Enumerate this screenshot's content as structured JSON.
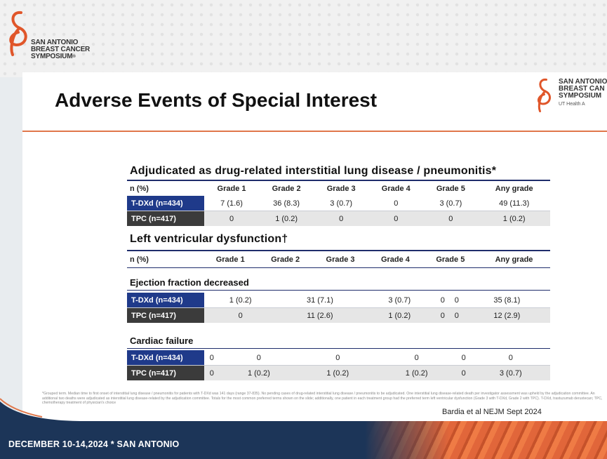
{
  "header": {
    "logo_lines": [
      "SAN ANTONIO",
      "BREAST CANCER",
      "SYMPOSIUM"
    ],
    "logo_mark": "®"
  },
  "slide": {
    "title": "Adverse Events of Special Interest",
    "corner_logo_lines": [
      "SAN ANTONIO",
      "BREAST CAN",
      "SYMPOSIUM"
    ],
    "corner_logo_extra": "UT Health   A",
    "columns": [
      "n (%)",
      "Grade 1",
      "Grade 2",
      "Grade 3",
      "Grade 4",
      "Grade 5",
      "Any grade"
    ],
    "ild": {
      "title": "Adjudicated as drug-related interstitial lung disease / pneumonitis*",
      "rows": [
        {
          "label": "T-DXd (n=434)",
          "values": [
            "7 (1.6)",
            "36 (8.3)",
            "3 (0.7)",
            "0",
            "3 (0.7)",
            "49 (11.3)"
          ]
        },
        {
          "label": "TPC (n=417)",
          "values": [
            "0",
            "1 (0.2)",
            "0",
            "0",
            "0",
            "1 (0.2)"
          ]
        }
      ]
    },
    "lvd": {
      "title": "Left ventricular dysfunction†",
      "ejection": {
        "subtitle": "Ejection fraction decreased",
        "rows": [
          {
            "label": "T-DXd (n=434)",
            "values": [
              "1 (0.2)",
              "31 (7.1)",
              "3 (0.7)",
              "0",
              "0",
              "35 (8.1)"
            ]
          },
          {
            "label": "TPC (n=417)",
            "values": [
              "0",
              "11 (2.6)",
              "1 (0.2)",
              "0",
              "0",
              "12 (2.9)"
            ]
          }
        ]
      },
      "cardiac": {
        "subtitle": "Cardiac failure",
        "rows": [
          {
            "label": "T-DXd (n=434)",
            "values": [
              "0",
              "0",
              "0",
              "0",
              "0",
              "0"
            ]
          },
          {
            "label": "TPC (n=417)",
            "values": [
              "0",
              "1 (0.2)",
              "1 (0.2)",
              "1 (0.2)",
              "0",
              "3 (0.7)"
            ]
          }
        ]
      }
    },
    "footnote": "*Grouped term. Median time to first onset of interstitial lung disease / pneumonitis for patients with T-DXd was 141 days (range 37-835). No pending cases of drug-related interstitial lung disease / pneumonitis to be adjudicated. One interstitial lung disease-related death per investigator assessment was upheld by the adjudication committee. An additional two deaths were adjudicated as interstitial lung disease-related by the adjudication committee. Totals for the most common preferred terms shown on the slide; additionally, one patient in each treatment group had the preferred term left ventricular dysfunction (Grade 3 with T-DXd, Grade 2 with TPC). T-DXd, trastuzumab deruxtecan; TPC, chemotherapy treatment of physician's choice",
    "citation": "Bardia et al NEJM Sept 2024"
  },
  "footer": {
    "text": "DECEMBER 10-14,2024 * SAN ANTONIO"
  },
  "colors": {
    "navy": "#1f2d6b",
    "tdxd_label": "#1f3a8a",
    "tpc_label": "#3b3b3b",
    "accent": "#e0774a",
    "footer_band": "#1c3558"
  }
}
